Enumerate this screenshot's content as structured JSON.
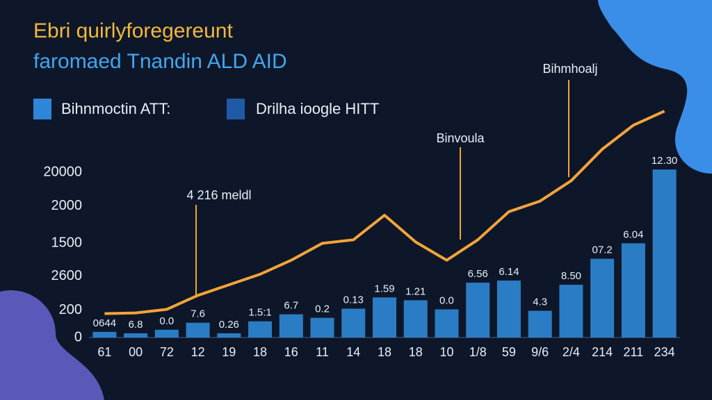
{
  "chart_data": {
    "type": "bar-line",
    "title": "Ebri quirlyforegereunt",
    "subtitle": "faromaed Tnandin ALD AID",
    "legend": [
      {
        "label": "Bihnmoctin ATT:",
        "color": "#2f86d8"
      },
      {
        "label": "Drilha ioogle HITT",
        "color": "#1f5aa6"
      }
    ],
    "annotations": [
      "4 216 meldl",
      "Binvoula",
      "Bihmhoalj"
    ],
    "categories": [
      "61",
      "00",
      "72",
      "12",
      "19",
      "18",
      "16",
      "11",
      "14",
      "18",
      "18",
      "10",
      "1/8",
      "59",
      "9/6",
      "2/4",
      "214",
      "211",
      "234"
    ],
    "series": [
      {
        "color": "#2f8fe0",
        "values": [
          80,
          60,
          110,
          210,
          60,
          230,
          330,
          280,
          410,
          570,
          530,
          400,
          780,
          810,
          380,
          750,
          1120,
          1340,
          2390
        ],
        "bar_labels": [
          "0644",
          "6.8",
          "0.0",
          "7.6",
          "0.26",
          "1.5:1",
          "6.7",
          "0.2",
          "0.13",
          "1.59",
          "1.21",
          "0.0",
          "6.56",
          "6.14",
          "4.3",
          "8.50",
          "07.2",
          "6.04",
          "12.30"
        ]
      },
      {
        "color": "#f4a43a",
        "values": [
          340,
          350,
          400,
          600,
          750,
          900,
          1100,
          1340,
          1390,
          1740,
          1360,
          1100,
          1390,
          1790,
          1940,
          2230,
          2680,
          3020,
          3220
        ]
      }
    ],
    "ylim": [
      0,
      3300
    ],
    "yticks": [
      0,
      {
        "value": 390,
        "label": "200"
      },
      {
        "value": 870,
        "label": "2600"
      },
      {
        "value": 1340,
        "label": "1500"
      },
      {
        "value": 1870,
        "label": "2000"
      },
      {
        "value": 2350,
        "label": "20000"
      }
    ]
  }
}
